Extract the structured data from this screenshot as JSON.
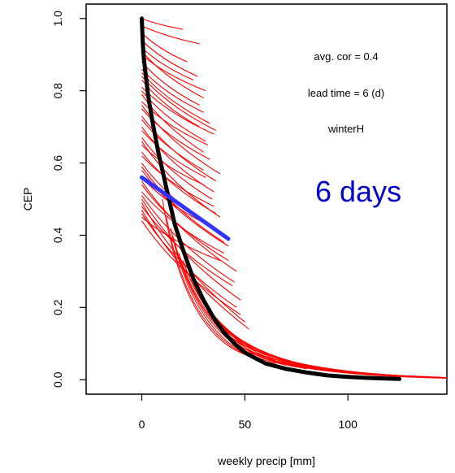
{
  "chart_data": {
    "type": "line",
    "title": "",
    "xlabel": "weekly precip [mm]",
    "ylabel": "CEP",
    "xlim": [
      -27,
      148
    ],
    "ylim": [
      -0.04,
      1.04
    ],
    "x_ticks": [
      0,
      50,
      100
    ],
    "x_tick_labels": [
      "0",
      "50",
      "100"
    ],
    "y_ticks": [
      0.0,
      0.2,
      0.4,
      0.6,
      0.8,
      1.0
    ],
    "y_tick_labels": [
      "0.0",
      "0.2",
      "0.4",
      "0.6",
      "0.8",
      "1.0"
    ],
    "grid": false,
    "annotations": {
      "avg_cor": "avg. cor = 0.4",
      "lead_time": "lead time = 6 (d)",
      "season": "winterH",
      "big_label": "6 days"
    },
    "colors": {
      "ensemble": "#ff0000",
      "mean": "#000000",
      "regression": "#3333ff",
      "big_label": "#0000cc"
    },
    "mean_curve": {
      "x": [
        0,
        0.5,
        1,
        2,
        3,
        5,
        8,
        12,
        16,
        20,
        25,
        30,
        35,
        40,
        45,
        50,
        55,
        60,
        70,
        80,
        90,
        100,
        110,
        120,
        125
      ],
      "y": [
        1.0,
        0.93,
        0.89,
        0.84,
        0.79,
        0.72,
        0.63,
        0.53,
        0.43,
        0.36,
        0.28,
        0.22,
        0.17,
        0.13,
        0.1,
        0.075,
        0.06,
        0.045,
        0.03,
        0.02,
        0.012,
        0.008,
        0.005,
        0.003,
        0.002
      ]
    },
    "regression_line": {
      "x": [
        0,
        42
      ],
      "y": [
        0.56,
        0.39
      ]
    },
    "member_tangents": {
      "x_start": [
        0,
        0,
        0,
        0,
        0,
        0,
        0,
        0,
        0,
        0,
        0,
        0,
        0,
        0,
        0,
        0,
        0,
        0,
        0,
        0,
        0,
        0,
        0,
        0,
        0,
        0,
        0,
        0,
        0,
        0,
        0,
        0,
        0,
        0,
        0,
        0,
        0,
        0,
        0,
        0,
        0,
        0
      ],
      "y_start": [
        1.0,
        0.98,
        0.96,
        0.94,
        0.92,
        0.91,
        0.9,
        0.88,
        0.86,
        0.85,
        0.84,
        0.83,
        0.81,
        0.8,
        0.79,
        0.77,
        0.76,
        0.75,
        0.73,
        0.72,
        0.7,
        0.69,
        0.67,
        0.66,
        0.65,
        0.63,
        0.62,
        0.6,
        0.59,
        0.58,
        0.56,
        0.55,
        0.54,
        0.52,
        0.51,
        0.5,
        0.49,
        0.48,
        0.47,
        0.46,
        0.45,
        0.44
      ],
      "x_end": [
        20,
        28,
        22,
        27,
        25,
        30,
        31,
        28,
        30,
        33,
        36,
        28,
        35,
        31,
        30,
        32,
        38,
        33,
        36,
        30,
        35,
        31,
        34,
        38,
        30,
        36,
        35,
        40,
        40,
        42,
        35,
        46,
        42,
        40,
        45,
        48,
        50,
        44,
        52,
        46,
        38,
        48
      ],
      "y_end": [
        0.97,
        0.93,
        0.88,
        0.84,
        0.83,
        0.78,
        0.8,
        0.76,
        0.74,
        0.71,
        0.69,
        0.7,
        0.68,
        0.66,
        0.63,
        0.65,
        0.57,
        0.61,
        0.55,
        0.58,
        0.52,
        0.56,
        0.5,
        0.45,
        0.54,
        0.46,
        0.48,
        0.4,
        0.38,
        0.37,
        0.42,
        0.3,
        0.33,
        0.35,
        0.27,
        0.22,
        0.16,
        0.26,
        0.14,
        0.2,
        0.33,
        0.18
      ]
    },
    "member_tails": {
      "x_start": [
        10,
        12,
        14,
        15,
        16,
        18,
        20,
        22,
        24,
        26,
        28,
        30,
        32,
        34,
        36,
        38,
        40,
        42,
        45,
        48,
        50,
        55,
        60
      ],
      "y_start": [
        0.5,
        0.45,
        0.42,
        0.4,
        0.38,
        0.35,
        0.33,
        0.3,
        0.28,
        0.25,
        0.23,
        0.21,
        0.19,
        0.17,
        0.15,
        0.14,
        0.13,
        0.12,
        0.1,
        0.09,
        0.08,
        0.07,
        0.06
      ],
      "x_end": [
        50,
        55,
        60,
        65,
        70,
        75,
        80,
        85,
        90,
        95,
        100,
        105,
        110,
        115,
        120,
        125,
        130,
        135,
        140,
        145,
        148,
        148,
        148
      ],
      "y_end": [
        0.07,
        0.06,
        0.05,
        0.045,
        0.04,
        0.035,
        0.03,
        0.028,
        0.025,
        0.022,
        0.02,
        0.018,
        0.016,
        0.014,
        0.012,
        0.011,
        0.01,
        0.009,
        0.008,
        0.007,
        0.006,
        0.005,
        0.004
      ]
    }
  }
}
